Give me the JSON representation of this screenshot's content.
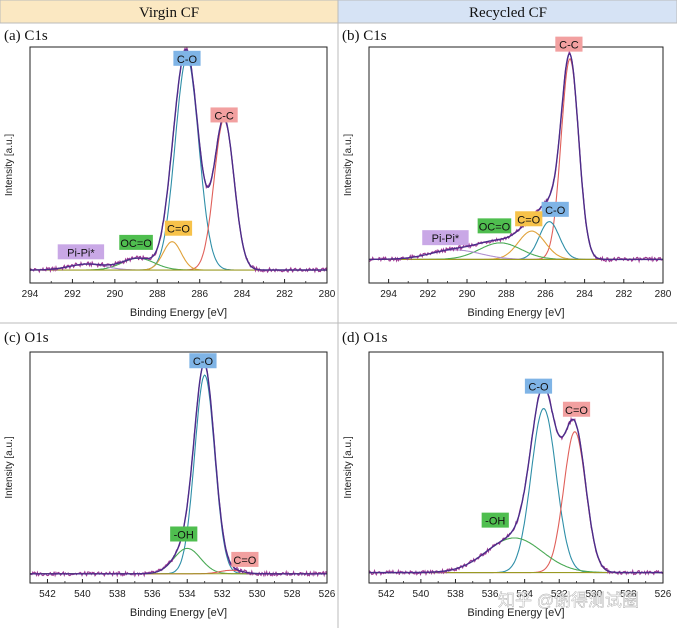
{
  "headers": {
    "left": "Virgin CF",
    "right": "Recycled CF",
    "left_bg": "#fbe8c2",
    "right_bg": "#d6e3f5"
  },
  "watermark": "知乎 @谢得测试圈",
  "colors": {
    "envelope": "#4b2d8a",
    "raw": "#a13a95",
    "baseline": "#9a9a23",
    "c_o": "#2f8fa8",
    "c_c": "#e0605a",
    "c_eq_o": "#e0a23a",
    "oc_eq_o": "#4aaa55",
    "pipi": "#b08fd0",
    "oh": "#4aaa55",
    "label_blue": "#7fb4e6",
    "label_red": "#f2a0a0",
    "label_orange": "#f7c24a",
    "label_green": "#4fbe4f",
    "label_purple": "#c9a8e6"
  },
  "chart_data": [
    {
      "id": "a",
      "panel_label": "(a) C1s",
      "type": "line",
      "xlabel": "Binding Energy [eV]",
      "ylabel": "Intensity [a.u.]",
      "xlim": [
        294,
        280
      ],
      "ylim": [
        0,
        1
      ],
      "xticks": [
        294,
        292,
        290,
        288,
        286,
        284,
        282,
        280
      ],
      "baseline": 0.055,
      "peaks": [
        {
          "name": "C-O",
          "center": 286.6,
          "height": 0.9,
          "fwhm": 1.3,
          "color_key": "c_o"
        },
        {
          "name": "C-C",
          "center": 284.85,
          "height": 0.64,
          "fwhm": 1.1,
          "color_key": "c_c"
        },
        {
          "name": "C=O",
          "center": 287.3,
          "height": 0.12,
          "fwhm": 1.0,
          "color_key": "c_eq_o"
        },
        {
          "name": "OC=O",
          "center": 288.9,
          "height": 0.05,
          "fwhm": 1.8,
          "color_key": "oc_eq_o"
        },
        {
          "name": "Pi-Pi*",
          "center": 291.3,
          "height": 0.025,
          "fwhm": 2.0,
          "color_key": "pipi"
        }
      ],
      "labels": [
        {
          "text": "C-O",
          "x": 286.6,
          "y": 0.95,
          "bg_key": "label_blue"
        },
        {
          "text": "C-C",
          "x": 284.85,
          "y": 0.71,
          "bg_key": "label_red"
        },
        {
          "text": "C=O",
          "x": 287.0,
          "y": 0.23,
          "bg_key": "label_orange"
        },
        {
          "text": "OC=O",
          "x": 289.0,
          "y": 0.17,
          "bg_key": "label_green"
        },
        {
          "text": "Pi-Pi*",
          "x": 291.6,
          "y": 0.13,
          "bg_key": "label_purple"
        }
      ]
    },
    {
      "id": "b",
      "panel_label": "(b) C1s",
      "type": "line",
      "xlabel": "Binding Energy [eV]",
      "ylabel": "Intensity [a.u.]",
      "xlim": [
        295,
        280
      ],
      "ylim": [
        0,
        1
      ],
      "xticks": [
        294,
        292,
        290,
        288,
        286,
        284,
        282,
        280
      ],
      "baseline": 0.1,
      "peaks": [
        {
          "name": "C-C",
          "center": 284.75,
          "height": 0.85,
          "fwhm": 1.05,
          "color_key": "c_c"
        },
        {
          "name": "C-O",
          "center": 285.8,
          "height": 0.16,
          "fwhm": 1.2,
          "color_key": "c_o"
        },
        {
          "name": "C=O",
          "center": 286.7,
          "height": 0.12,
          "fwhm": 1.6,
          "color_key": "c_eq_o"
        },
        {
          "name": "OC=O",
          "center": 288.3,
          "height": 0.07,
          "fwhm": 2.5,
          "color_key": "oc_eq_o"
        },
        {
          "name": "Pi-Pi*",
          "center": 290.6,
          "height": 0.04,
          "fwhm": 3.0,
          "color_key": "pipi"
        }
      ],
      "labels": [
        {
          "text": "C-C",
          "x": 284.8,
          "y": 1.01,
          "bg_key": "label_red"
        },
        {
          "text": "C-O",
          "x": 285.5,
          "y": 0.31,
          "bg_key": "label_blue"
        },
        {
          "text": "C=O",
          "x": 286.85,
          "y": 0.27,
          "bg_key": "label_orange"
        },
        {
          "text": "OC=O",
          "x": 288.6,
          "y": 0.24,
          "bg_key": "label_green"
        },
        {
          "text": "Pi-Pi*",
          "x": 291.1,
          "y": 0.19,
          "bg_key": "label_purple"
        }
      ]
    },
    {
      "id": "c",
      "panel_label": "(c) O1s",
      "type": "line",
      "xlabel": "Binding Energy [eV]",
      "ylabel": "Intensity [a.u.]",
      "xlim": [
        543,
        526
      ],
      "ylim": [
        0,
        1
      ],
      "xticks": [
        542,
        540,
        538,
        536,
        534,
        532,
        530,
        528,
        526
      ],
      "baseline": 0.04,
      "peaks": [
        {
          "name": "C-O",
          "center": 533.0,
          "height": 0.86,
          "fwhm": 1.35,
          "color_key": "c_o"
        },
        {
          "name": "-OH",
          "center": 534.0,
          "height": 0.11,
          "fwhm": 1.8,
          "color_key": "oh"
        },
        {
          "name": "C=O",
          "center": 531.5,
          "height": 0.015,
          "fwhm": 1.5,
          "color_key": "c_c"
        }
      ],
      "labels": [
        {
          "text": "C-O",
          "x": 533.1,
          "y": 0.96,
          "bg_key": "label_blue"
        },
        {
          "text": "-OH",
          "x": 534.2,
          "y": 0.21,
          "bg_key": "label_green"
        },
        {
          "text": "C=O",
          "x": 530.7,
          "y": 0.1,
          "bg_key": "label_red"
        }
      ]
    },
    {
      "id": "d",
      "panel_label": "(d) O1s",
      "type": "line",
      "xlabel": "Binding Energy [eV]",
      "ylabel": "Intensity [a.u.]",
      "xlim": [
        543,
        526
      ],
      "ylim": [
        0,
        1
      ],
      "xticks": [
        542,
        540,
        538,
        536,
        534,
        532,
        530,
        528,
        526
      ],
      "baseline": 0.045,
      "peaks": [
        {
          "name": "C-O",
          "center": 532.9,
          "height": 0.71,
          "fwhm": 1.7,
          "color_key": "c_o"
        },
        {
          "name": "C=O",
          "center": 531.1,
          "height": 0.61,
          "fwhm": 1.5,
          "color_key": "c_c"
        },
        {
          "name": "-OH",
          "center": 534.6,
          "height": 0.15,
          "fwhm": 3.8,
          "color_key": "oh"
        }
      ],
      "labels": [
        {
          "text": "C-O",
          "x": 533.2,
          "y": 0.85,
          "bg_key": "label_blue"
        },
        {
          "text": "C=O",
          "x": 531.0,
          "y": 0.75,
          "bg_key": "label_red"
        },
        {
          "text": "-OH",
          "x": 535.7,
          "y": 0.27,
          "bg_key": "label_green"
        }
      ]
    }
  ]
}
